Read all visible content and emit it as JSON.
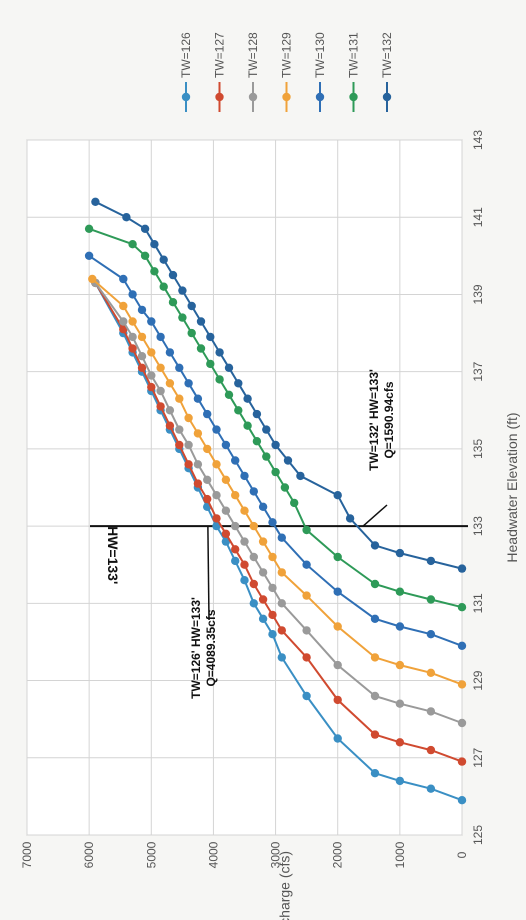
{
  "chart_data": {
    "type": "line",
    "xlabel": "Headwater Elevation (ft)",
    "ylabel": "Discharge (cfs)",
    "xlim": [
      125,
      143
    ],
    "ylim": [
      0,
      7000
    ],
    "x_ticks": [
      "125",
      "127",
      "129",
      "131",
      "133",
      "135",
      "137",
      "139",
      "141",
      "143"
    ],
    "y_ticks": [
      "0",
      "1000",
      "2000",
      "3000",
      "4000",
      "5000",
      "6000",
      "7000"
    ],
    "grid": true,
    "legend_position": "top",
    "orientation": "rotated 90 degrees counter-clockwise",
    "series": [
      {
        "name": "TW=126",
        "color": "#3a8fc4",
        "points": [
          [
            125.9,
            0
          ],
          [
            126.2,
            500
          ],
          [
            126.4,
            1000
          ],
          [
            126.6,
            1400
          ],
          [
            127.5,
            2000
          ],
          [
            128.6,
            2500
          ],
          [
            129.6,
            2900
          ],
          [
            130.2,
            3050
          ],
          [
            130.6,
            3200
          ],
          [
            131.0,
            3350
          ],
          [
            131.6,
            3500
          ],
          [
            132.1,
            3650
          ],
          [
            132.6,
            3800
          ],
          [
            133.0,
            3950
          ],
          [
            133.5,
            4100
          ],
          [
            134.0,
            4250
          ],
          [
            134.5,
            4400
          ],
          [
            135.0,
            4550
          ],
          [
            135.5,
            4700
          ],
          [
            136.0,
            4850
          ],
          [
            136.5,
            5000
          ],
          [
            137.0,
            5150
          ],
          [
            137.5,
            5300
          ],
          [
            138.0,
            5450
          ],
          [
            139.3,
            5900
          ]
        ]
      },
      {
        "name": "TW=127",
        "color": "#d04a30",
        "points": [
          [
            126.9,
            0
          ],
          [
            127.2,
            500
          ],
          [
            127.4,
            1000
          ],
          [
            127.6,
            1400
          ],
          [
            128.5,
            2000
          ],
          [
            129.6,
            2500
          ],
          [
            130.3,
            2900
          ],
          [
            130.7,
            3050
          ],
          [
            131.1,
            3200
          ],
          [
            131.5,
            3350
          ],
          [
            132.0,
            3500
          ],
          [
            132.4,
            3650
          ],
          [
            132.8,
            3800
          ],
          [
            133.2,
            3950
          ],
          [
            133.7,
            4100
          ],
          [
            134.1,
            4250
          ],
          [
            134.6,
            4400
          ],
          [
            135.1,
            4550
          ],
          [
            135.6,
            4700
          ],
          [
            136.1,
            4850
          ],
          [
            136.6,
            5000
          ],
          [
            137.1,
            5150
          ],
          [
            137.6,
            5300
          ],
          [
            138.1,
            5450
          ],
          [
            139.3,
            5900
          ]
        ]
      },
      {
        "name": "TW=128",
        "color": "#9a9a9a",
        "points": [
          [
            127.9,
            0
          ],
          [
            128.2,
            500
          ],
          [
            128.4,
            1000
          ],
          [
            128.6,
            1400
          ],
          [
            129.4,
            2000
          ],
          [
            130.3,
            2500
          ],
          [
            131.0,
            2900
          ],
          [
            131.4,
            3050
          ],
          [
            131.8,
            3200
          ],
          [
            132.2,
            3350
          ],
          [
            132.6,
            3500
          ],
          [
            133.0,
            3650
          ],
          [
            133.4,
            3800
          ],
          [
            133.8,
            3950
          ],
          [
            134.2,
            4100
          ],
          [
            134.6,
            4250
          ],
          [
            135.1,
            4400
          ],
          [
            135.5,
            4550
          ],
          [
            136.0,
            4700
          ],
          [
            136.5,
            4850
          ],
          [
            136.9,
            5000
          ],
          [
            137.4,
            5150
          ],
          [
            137.9,
            5300
          ],
          [
            138.3,
            5450
          ],
          [
            139.3,
            5900
          ]
        ]
      },
      {
        "name": "TW=129",
        "color": "#f0a23a",
        "points": [
          [
            128.9,
            0
          ],
          [
            129.2,
            500
          ],
          [
            129.4,
            1000
          ],
          [
            129.6,
            1400
          ],
          [
            130.4,
            2000
          ],
          [
            131.2,
            2500
          ],
          [
            131.8,
            2900
          ],
          [
            132.2,
            3050
          ],
          [
            132.6,
            3200
          ],
          [
            133.0,
            3350
          ],
          [
            133.4,
            3500
          ],
          [
            133.8,
            3650
          ],
          [
            134.2,
            3800
          ],
          [
            134.6,
            3950
          ],
          [
            135.0,
            4100
          ],
          [
            135.4,
            4250
          ],
          [
            135.8,
            4400
          ],
          [
            136.3,
            4550
          ],
          [
            136.7,
            4700
          ],
          [
            137.1,
            4850
          ],
          [
            137.5,
            5000
          ],
          [
            137.9,
            5150
          ],
          [
            138.3,
            5300
          ],
          [
            138.7,
            5450
          ],
          [
            139.4,
            5950
          ]
        ]
      },
      {
        "name": "TW=130",
        "color": "#2f6fb5",
        "points": [
          [
            129.9,
            0
          ],
          [
            130.2,
            500
          ],
          [
            130.4,
            1000
          ],
          [
            130.6,
            1400
          ],
          [
            131.3,
            2000
          ],
          [
            132.0,
            2500
          ],
          [
            132.7,
            2900
          ],
          [
            133.1,
            3050
          ],
          [
            133.5,
            3200
          ],
          [
            133.9,
            3350
          ],
          [
            134.3,
            3500
          ],
          [
            134.7,
            3650
          ],
          [
            135.1,
            3800
          ],
          [
            135.5,
            3950
          ],
          [
            135.9,
            4100
          ],
          [
            136.3,
            4250
          ],
          [
            136.7,
            4400
          ],
          [
            137.1,
            4550
          ],
          [
            137.5,
            4700
          ],
          [
            137.9,
            4850
          ],
          [
            138.3,
            5000
          ],
          [
            138.6,
            5150
          ],
          [
            139.0,
            5300
          ],
          [
            139.4,
            5450
          ],
          [
            140.0,
            6000
          ]
        ]
      },
      {
        "name": "TW=131",
        "color": "#2e9a58",
        "points": [
          [
            130.9,
            0
          ],
          [
            131.1,
            500
          ],
          [
            131.3,
            1000
          ],
          [
            131.5,
            1400
          ],
          [
            132.2,
            2000
          ],
          [
            132.9,
            2500
          ],
          [
            133.6,
            2700
          ],
          [
            134.0,
            2850
          ],
          [
            134.4,
            3000
          ],
          [
            134.8,
            3150
          ],
          [
            135.2,
            3300
          ],
          [
            135.6,
            3450
          ],
          [
            136.0,
            3600
          ],
          [
            136.4,
            3750
          ],
          [
            136.8,
            3900
          ],
          [
            137.2,
            4050
          ],
          [
            137.6,
            4200
          ],
          [
            138.0,
            4350
          ],
          [
            138.4,
            4500
          ],
          [
            138.8,
            4650
          ],
          [
            139.2,
            4800
          ],
          [
            139.6,
            4950
          ],
          [
            140.0,
            5100
          ],
          [
            140.3,
            5300
          ],
          [
            140.7,
            6000
          ]
        ]
      },
      {
        "name": "TW=132",
        "color": "#27639c",
        "points": [
          [
            131.9,
            0
          ],
          [
            132.1,
            500
          ],
          [
            132.3,
            1000
          ],
          [
            132.5,
            1400
          ],
          [
            133.2,
            1800
          ],
          [
            133.8,
            2000
          ],
          [
            134.3,
            2600
          ],
          [
            134.7,
            2800
          ],
          [
            135.1,
            3000
          ],
          [
            135.5,
            3150
          ],
          [
            135.9,
            3300
          ],
          [
            136.3,
            3450
          ],
          [
            136.7,
            3600
          ],
          [
            137.1,
            3750
          ],
          [
            137.5,
            3900
          ],
          [
            137.9,
            4050
          ],
          [
            138.3,
            4200
          ],
          [
            138.7,
            4350
          ],
          [
            139.1,
            4500
          ],
          [
            139.5,
            4650
          ],
          [
            139.9,
            4800
          ],
          [
            140.3,
            4950
          ],
          [
            140.7,
            5100
          ],
          [
            141.0,
            5400
          ],
          [
            141.4,
            5900
          ]
        ]
      }
    ],
    "reference_line": {
      "x": 133,
      "label": "HW=133'"
    },
    "annotations": [
      {
        "line1": "TW=126' HW=133'",
        "line2": "Q=4089.35cfs",
        "x": 133,
        "y": 4089.35
      },
      {
        "line1": "TW=132' HW=133'",
        "line2": "Q=1590.94cfs",
        "x": 133,
        "y": 1590.94
      }
    ]
  }
}
